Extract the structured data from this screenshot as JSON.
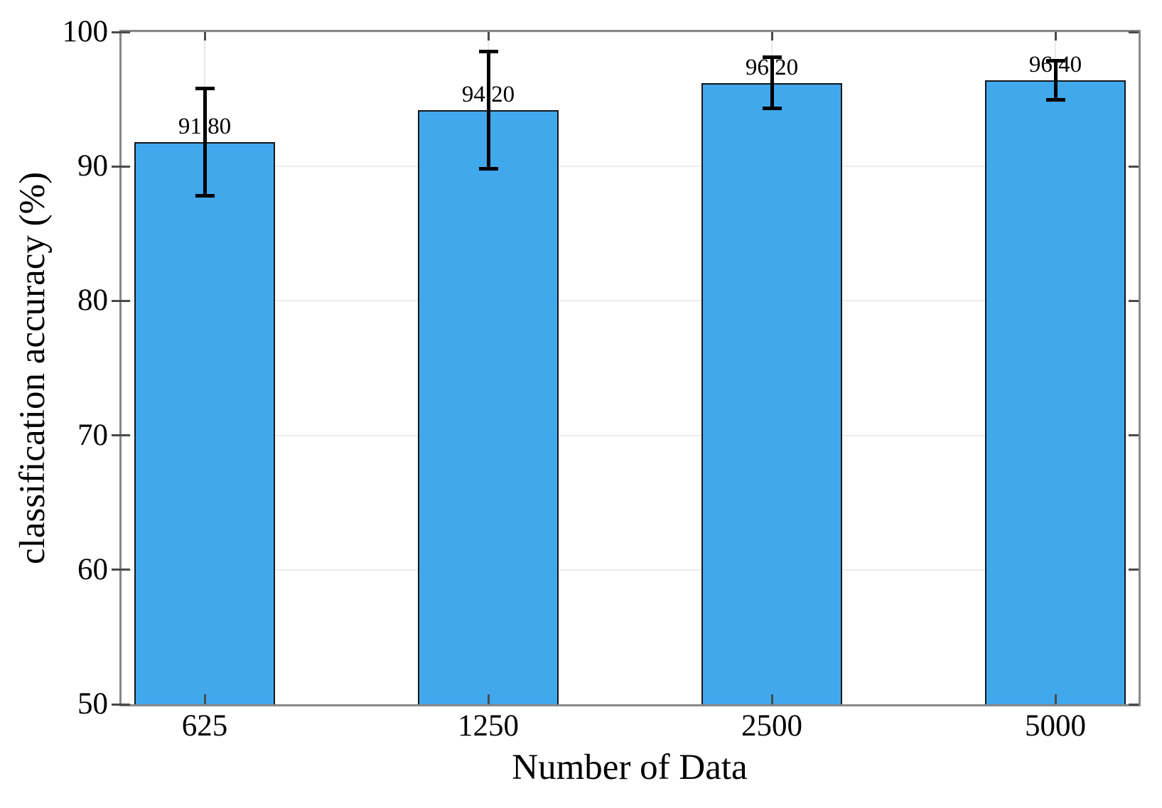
{
  "chart_data": {
    "type": "bar",
    "title": "",
    "xlabel": "Number of Data",
    "ylabel": "classification accuracy (%)",
    "categories": [
      "625",
      "1250",
      "2500",
      "5000"
    ],
    "values": [
      91.8,
      94.2,
      96.2,
      96.4
    ],
    "errors": [
      4.0,
      4.35,
      1.9,
      1.45
    ],
    "value_labels": [
      "91.80",
      "94.20",
      "96.20",
      "96.40"
    ],
    "ylim": [
      50,
      100
    ],
    "yticks": [
      50,
      60,
      70,
      80,
      90,
      100
    ],
    "ytick_labels": [
      "50",
      "60",
      "70",
      "80",
      "90",
      "100"
    ],
    "grid": true,
    "legend_position": "none",
    "colors": {
      "bar_fill": "#41a8ec",
      "bar_edge": "#14161b",
      "axis_border": "#888888",
      "gridline": "#ececec",
      "error_bar": "#000000",
      "text": "#000000"
    }
  }
}
